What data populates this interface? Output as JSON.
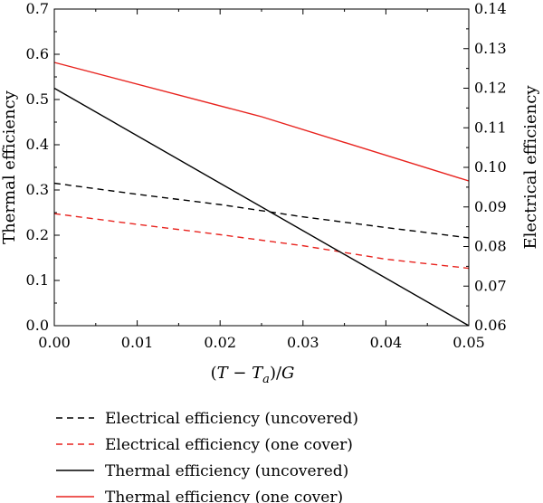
{
  "chart_data": {
    "type": "line",
    "title": "",
    "xlabel_parts": [
      "(",
      "T",
      " − ",
      "T",
      "a",
      ")/",
      "G"
    ],
    "ylabel_left": "Thermal efficiency",
    "ylabel_right": "Electrical efficiency",
    "xlim": [
      0.0,
      0.05
    ],
    "ylim_left": [
      0.0,
      0.7
    ],
    "ylim_right": [
      0.06,
      0.14
    ],
    "x_ticks": [
      "0.00",
      "0.01",
      "0.02",
      "0.03",
      "0.04",
      "0.05"
    ],
    "y_ticks_left": [
      "0.0",
      "0.1",
      "0.2",
      "0.3",
      "0.4",
      "0.5",
      "0.6",
      "0.7"
    ],
    "y_ticks_right": [
      "0.06",
      "0.07",
      "0.08",
      "0.09",
      "0.10",
      "0.11",
      "0.12",
      "0.13",
      "0.14"
    ],
    "grid": false,
    "legend_position": "bottom",
    "series": [
      {
        "name": "Electrical efficiency (uncovered)",
        "axis": "right",
        "color": "#000000",
        "dash": "dashed",
        "points": [
          [
            0.0,
            0.096
          ],
          [
            0.01,
            0.0932
          ],
          [
            0.02,
            0.0906
          ],
          [
            0.03,
            0.0875
          ],
          [
            0.04,
            0.0848
          ],
          [
            0.05,
            0.0822
          ]
        ]
      },
      {
        "name": "Electrical efficiency (one cover)",
        "axis": "right",
        "color": "#e8231e",
        "dash": "dashed",
        "points": [
          [
            0.0,
            0.0883
          ],
          [
            0.01,
            0.0856
          ],
          [
            0.02,
            0.083
          ],
          [
            0.03,
            0.0802
          ],
          [
            0.04,
            0.0768
          ],
          [
            0.05,
            0.0745
          ]
        ]
      },
      {
        "name": "Thermal efficiency (uncovered)",
        "axis": "left",
        "color": "#000000",
        "dash": "solid",
        "points": [
          [
            0.0,
            0.525
          ],
          [
            0.05,
            0.0
          ]
        ]
      },
      {
        "name": "Thermal efficiency (one cover)",
        "axis": "left",
        "color": "#e8231e",
        "dash": "solid",
        "points": [
          [
            0.0,
            0.582
          ],
          [
            0.025,
            0.462
          ],
          [
            0.05,
            0.32
          ]
        ]
      }
    ]
  }
}
